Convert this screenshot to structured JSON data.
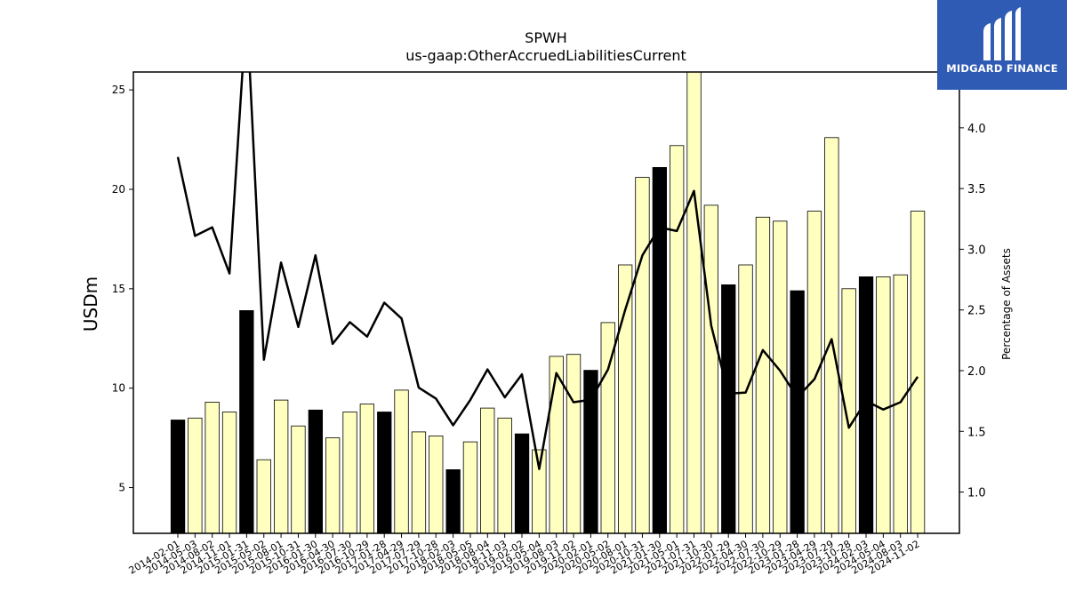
{
  "chart_data": {
    "type": "bar+line",
    "title": "SPWH",
    "subtitle": "us-gaap:OtherAccruedLiabilitiesCurrent",
    "ylabel_left": "USDm",
    "ylabel_right": "Percentage of Assets",
    "ylim_left": [
      2.7,
      25.9
    ],
    "ylim_right": [
      0.66,
      4.46
    ],
    "yticks_left": [
      5,
      10,
      15,
      20,
      25
    ],
    "yticks_right": [
      1.0,
      1.5,
      2.0,
      2.5,
      3.0,
      3.5,
      4.0
    ],
    "categories": [
      "2014-02-01",
      "2014-05-03",
      "2014-08-02",
      "2014-11-01",
      "2015-01-31",
      "2015-05-02",
      "2015-08-01",
      "2015-10-31",
      "2016-01-30",
      "2016-04-30",
      "2016-07-30",
      "2016-10-29",
      "2017-01-28",
      "2017-04-29",
      "2017-07-29",
      "2017-10-28",
      "2018-02-03",
      "2018-05-05",
      "2018-08-04",
      "2018-11-03",
      "2019-02-02",
      "2019-05-04",
      "2019-08-03",
      "2019-11-02",
      "2020-02-01",
      "2020-05-02",
      "2020-08-01",
      "2020-10-31",
      "2021-01-30",
      "2021-05-01",
      "2021-07-31",
      "2021-10-30",
      "2022-01-29",
      "2022-04-30",
      "2022-07-30",
      "2022-10-29",
      "2023-01-28",
      "2023-04-29",
      "2023-07-29",
      "2023-10-28",
      "2024-02-03",
      "2024-05-04",
      "2024-08-03",
      "2024-11-02"
    ],
    "bars": {
      "name": "USDm",
      "values": [
        8.4,
        8.5,
        9.3,
        8.8,
        13.9,
        6.4,
        9.4,
        8.1,
        8.9,
        7.5,
        8.8,
        9.2,
        8.8,
        9.9,
        7.8,
        7.6,
        5.9,
        7.3,
        9.0,
        8.5,
        7.7,
        6.9,
        11.6,
        11.7,
        10.9,
        13.3,
        16.2,
        20.6,
        21.1,
        22.2,
        26.0,
        19.2,
        15.2,
        16.2,
        18.6,
        18.4,
        14.9,
        18.9,
        22.6,
        15.0,
        15.6,
        15.6,
        15.7,
        18.9
      ],
      "highlight": [
        true,
        false,
        false,
        false,
        true,
        false,
        false,
        false,
        true,
        false,
        false,
        false,
        true,
        false,
        false,
        false,
        true,
        false,
        false,
        false,
        true,
        false,
        false,
        false,
        true,
        false,
        false,
        false,
        true,
        false,
        false,
        false,
        true,
        false,
        false,
        false,
        true,
        false,
        false,
        false,
        true,
        false,
        false,
        false
      ],
      "highlight_color": "#000000",
      "color": "#ffffc0"
    },
    "line": {
      "name": "Percentage of Assets",
      "values": [
        3.76,
        3.11,
        3.18,
        2.8,
        5.0,
        2.09,
        2.89,
        2.36,
        2.95,
        2.22,
        2.4,
        2.28,
        2.56,
        2.43,
        1.86,
        1.77,
        1.55,
        1.76,
        2.01,
        1.78,
        1.97,
        1.19,
        1.98,
        1.74,
        1.76,
        2.01,
        2.5,
        2.95,
        3.18,
        3.15,
        3.48,
        2.37,
        1.81,
        1.82,
        2.17,
        2.0,
        1.78,
        1.93,
        2.26,
        1.53,
        1.75,
        1.68,
        1.74,
        1.95
      ],
      "color": "#000000"
    }
  },
  "logo": {
    "text": "MIDGARD FINANCE",
    "color": "#2f5bb5"
  }
}
